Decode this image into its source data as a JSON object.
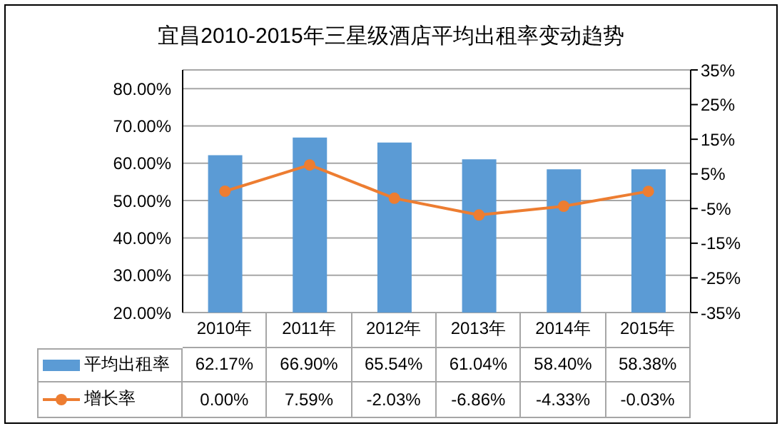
{
  "chart_data": {
    "type": "bar",
    "title": "宜昌2010-2015年三星级酒店平均出租率变动趋势",
    "categories": [
      "2010年",
      "2011年",
      "2012年",
      "2013年",
      "2014年",
      "2015年"
    ],
    "series": [
      {
        "name": "平均出租率",
        "color": "#5b9bd5",
        "values": [
          62.17,
          66.9,
          65.54,
          61.04,
          58.4,
          58.38
        ],
        "value_labels": [
          "62.17%",
          "66.90%",
          "65.54%",
          "61.04%",
          "58.40%",
          "58.38%"
        ]
      },
      {
        "name": "增长率",
        "type": "line",
        "axis": "y2",
        "color": "#ed7d31",
        "values": [
          0,
          7.59,
          -2.03,
          -6.86,
          -4.33,
          -0.03
        ],
        "value_labels": [
          "0.00%",
          "7.59%",
          "-2.03%",
          "-6.86%",
          "-4.33%",
          "-0.03%"
        ]
      }
    ],
    "ylim": [
      20,
      85
    ],
    "yticks": [
      {
        "value": 20,
        "label": "20.00%"
      },
      {
        "value": 30,
        "label": "30.00%"
      },
      {
        "value": 40,
        "label": "40.00%"
      },
      {
        "value": 50,
        "label": "50.00%"
      },
      {
        "value": 60,
        "label": "60.00%"
      },
      {
        "value": 70,
        "label": "70.00%"
      },
      {
        "value": 80,
        "label": "80.00%"
      }
    ],
    "y2lim": [
      -35,
      35
    ],
    "y2ticks": [
      {
        "value": -35,
        "label": "-35%"
      },
      {
        "value": -25,
        "label": "-25%"
      },
      {
        "value": -15,
        "label": "-15%"
      },
      {
        "value": -5,
        "label": "-5%"
      },
      {
        "value": 5,
        "label": "5%"
      },
      {
        "value": 15,
        "label": "15%"
      },
      {
        "value": 25,
        "label": "25%"
      },
      {
        "value": 35,
        "label": "35%"
      }
    ],
    "grid": "y",
    "legend": "bottom left",
    "marker": "circle",
    "line_style": "solid"
  }
}
